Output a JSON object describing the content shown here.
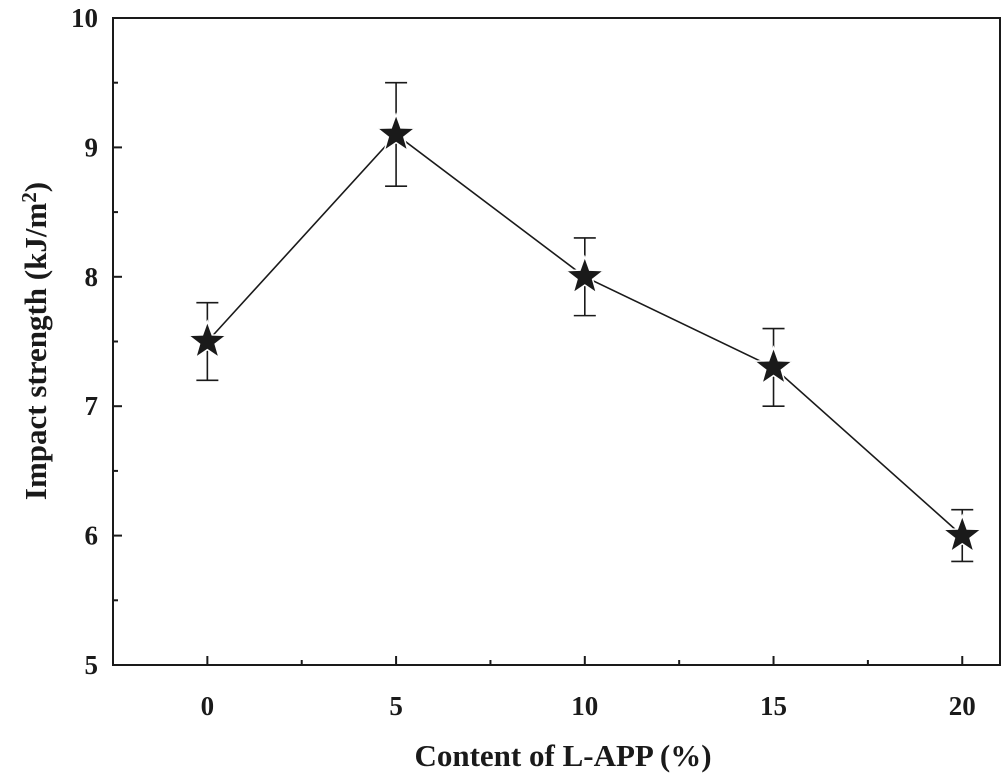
{
  "chart_data": {
    "type": "line",
    "x": [
      0,
      5,
      10,
      15,
      20
    ],
    "series": [
      {
        "values": [
          7.5,
          9.1,
          8.0,
          7.3,
          6.0
        ],
        "errors": [
          0.3,
          0.4,
          0.3,
          0.3,
          0.2
        ],
        "marker": "star",
        "color": "#1a1a1a"
      }
    ],
    "xlabel": "Content of L-APP (%)",
    "ylabel_main": "Impact strength (kJ/m",
    "ylabel_sup": "2",
    "ylabel_close": ")",
    "xlim": [
      -2.5,
      21
    ],
    "ylim": [
      5,
      10
    ],
    "xticks": [
      "0",
      "5",
      "10",
      "15",
      "20"
    ],
    "yticks": [
      "5",
      "6",
      "7",
      "8",
      "9",
      "10"
    ],
    "grid": false
  }
}
